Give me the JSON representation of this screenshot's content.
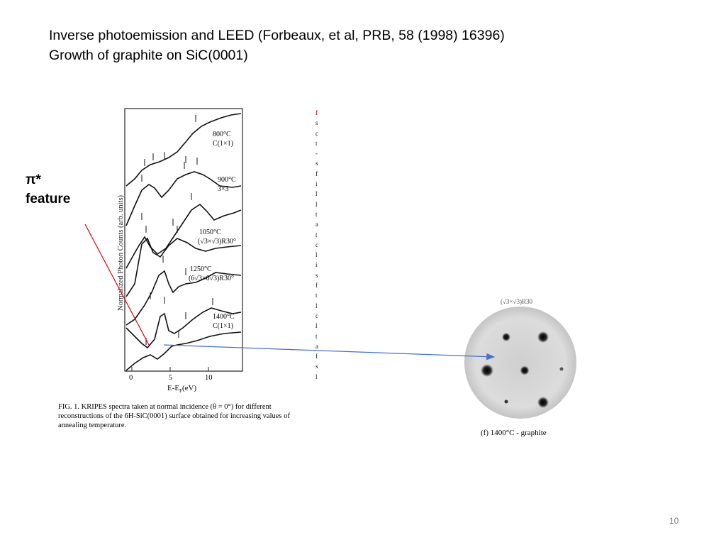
{
  "slide": {
    "title_line1": "Inverse photoemission and LEED (Forbeaux, et al, PRB, 58 (1998) 16396)",
    "title_line2": "Growth of graphite on SiC(0001)",
    "pi_label_line1": "π*",
    "pi_label_line2": "feature",
    "page_number": "10"
  },
  "spectra_figure": {
    "y_axis_label": "Normalized Photon Counts (arb. units)",
    "x_axis_label": "E-E",
    "x_axis_subscript": "F",
    "x_axis_unit": "(eV)",
    "x_ticks": [
      "0",
      "5",
      "10"
    ],
    "curve_labels": [
      {
        "temp": "800°C",
        "recon": "C(1×1)"
      },
      {
        "temp": "900°C",
        "recon": "3×3"
      },
      {
        "temp": "1050°C",
        "recon": "(√3×√3)R30°"
      },
      {
        "temp": "1250°C",
        "recon": "(6√3×6√3)R30°"
      },
      {
        "temp": "1400°C",
        "recon": "C(1×1)"
      }
    ],
    "caption": "FIG. 1. KRIPES spectra taken at normal incidence (θ = 0°) for different reconstructions of the 6H-SiC(0001) surface obtained for increasing values of annealing temperature."
  },
  "strip_glyphs": [
    "f",
    "s",
    "c",
    "t",
    "-",
    "s",
    "f",
    "i",
    "l",
    "l",
    "t",
    "a",
    "t",
    "c",
    "l",
    "i",
    "s",
    "f",
    "t",
    "l",
    "c",
    "l",
    "t",
    "a",
    "f",
    "s",
    "l"
  ],
  "leed_figure": {
    "top_text": "(√3×√3)R30",
    "caption": "(f)   1400°C  - graphite"
  }
}
